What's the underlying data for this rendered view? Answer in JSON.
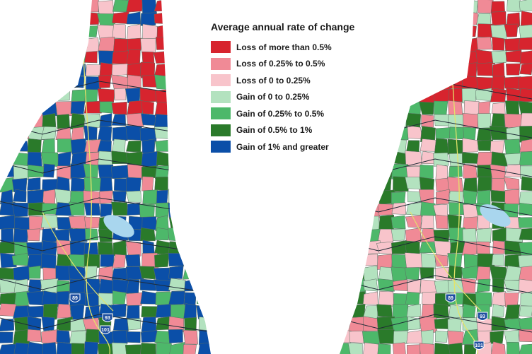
{
  "legend": {
    "title": "Average annual rate of change",
    "items": [
      {
        "label": "Loss of more than 0.5%",
        "color": "#d7242e"
      },
      {
        "label": "Loss of 0.25% to 0.5%",
        "color": "#f08a96"
      },
      {
        "label": "Loss of 0 to 0.25%",
        "color": "#f8c4cb"
      },
      {
        "label": "Gain of 0 to 0.25%",
        "color": "#b3e2bf"
      },
      {
        "label": "Gain of 0.25% to 0.5%",
        "color": "#4db86a"
      },
      {
        "label": "Gain of 0.5% to 1%",
        "color": "#2a7a2a"
      },
      {
        "label": "Gain of 1% and greater",
        "color": "#0b4fa8"
      }
    ]
  },
  "shields": {
    "left_89": "89",
    "left_93": "93",
    "left_101": "101",
    "right_89": "89",
    "right_93": "93",
    "right_101": "101"
  },
  "colors": {
    "water": "#a9d6ee",
    "highway": "#e3e36a",
    "border": "#1e2a36"
  }
}
